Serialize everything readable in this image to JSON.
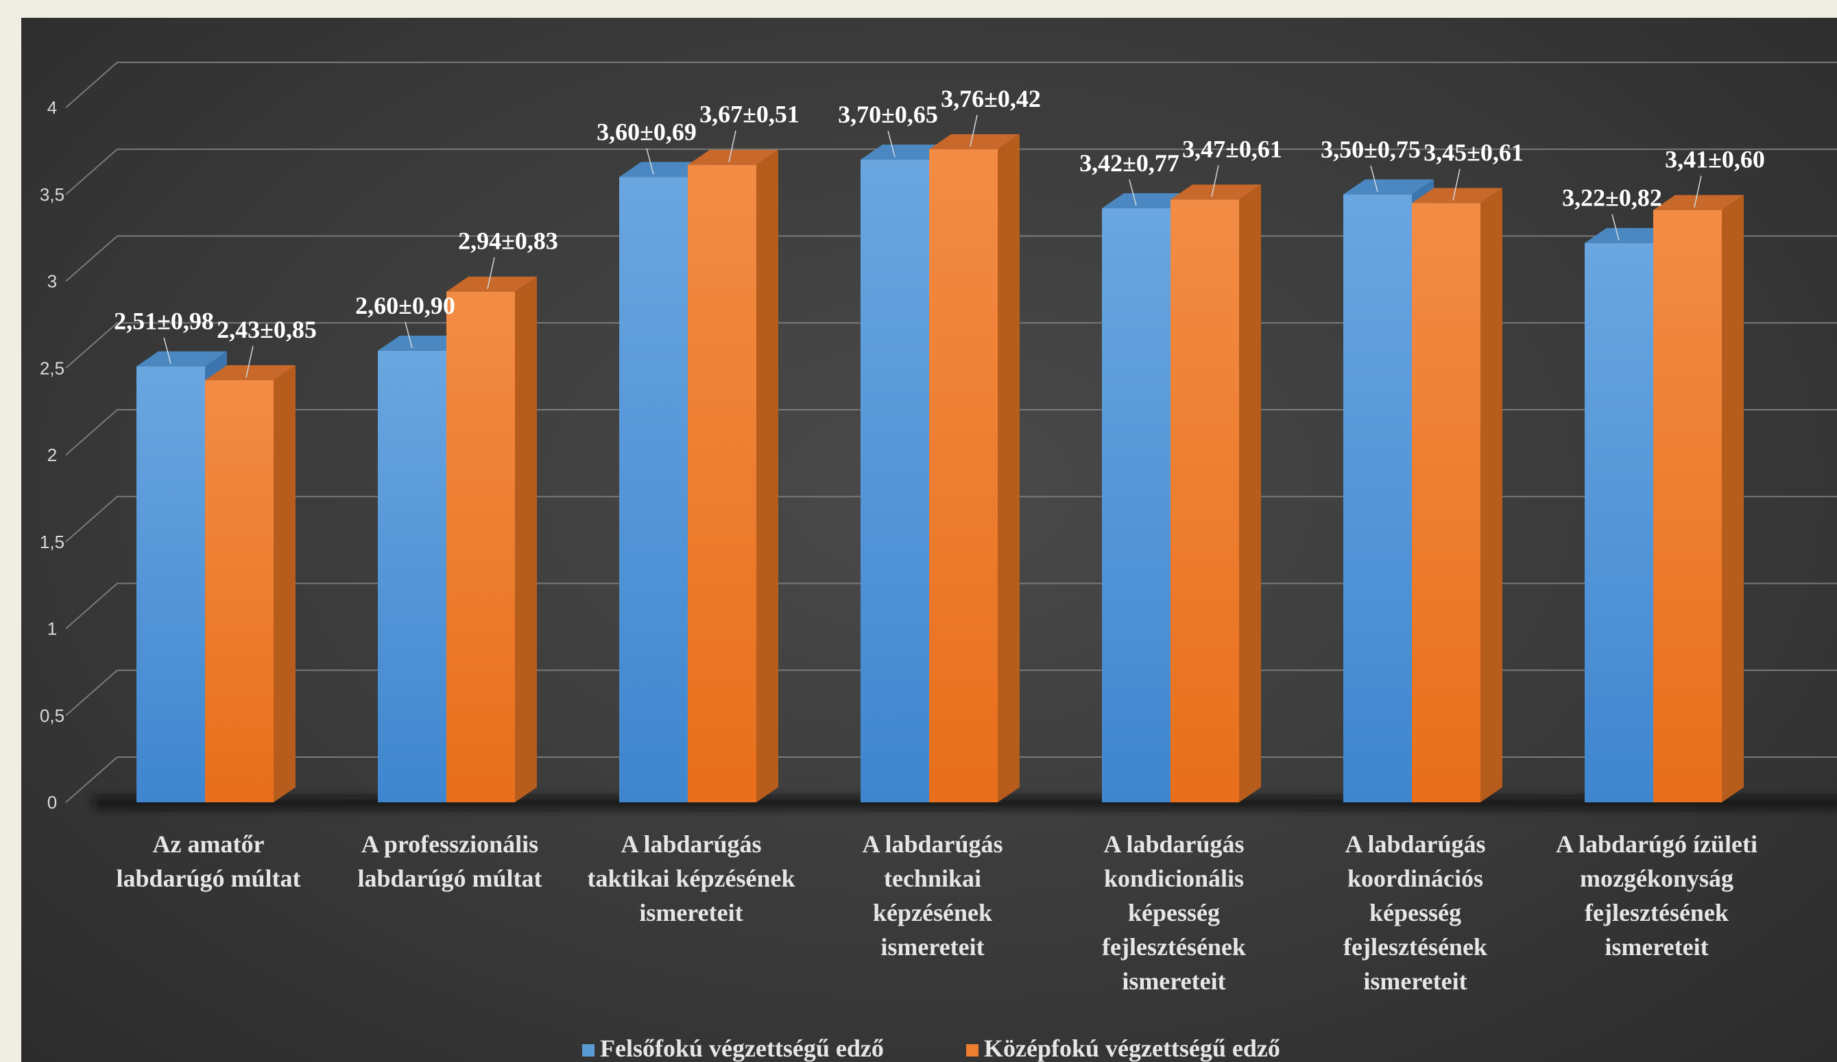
{
  "chart_data": {
    "type": "bar",
    "ylim": [
      0,
      4
    ],
    "yticks": [
      "0",
      "0,5",
      "1",
      "1,5",
      "2",
      "2,5",
      "3",
      "3,5",
      "4"
    ],
    "grid": true,
    "legend_position": "bottom",
    "categories": [
      [
        "Az amatőr",
        "labdarúgó múltat"
      ],
      [
        "A professzionális",
        "labdarúgó múltat"
      ],
      [
        "A labdarúgás",
        "taktikai képzésének",
        "ismereteit"
      ],
      [
        "A labdarúgás",
        "technikai",
        "képzésének",
        "ismereteit"
      ],
      [
        "A labdarúgás",
        "kondicionális",
        "képesség",
        "fejlesztésének",
        "ismereteit"
      ],
      [
        "A labdarúgás",
        "koordinációs",
        "képesség",
        "fejlesztésének",
        "ismereteit"
      ],
      [
        "A labdarúgó ízületi",
        "mozgékonyság",
        "fejlesztésének",
        "ismereteit"
      ]
    ],
    "series": [
      {
        "name": "Felsőfokú végzettségű edző",
        "color": "#5b9bd5",
        "values": [
          2.51,
          2.6,
          3.6,
          3.7,
          3.42,
          3.5,
          3.22
        ],
        "labels": [
          "2,51±0,98",
          "2,60±0,90",
          "3,60±0,69",
          "3,70±0,65",
          "3,42±0,77",
          "3,50±0,75",
          "3,22±0,82"
        ]
      },
      {
        "name": "Középfokú végzettségű edző",
        "color": "#ed7d31",
        "values": [
          2.43,
          2.94,
          3.67,
          3.76,
          3.47,
          3.45,
          3.41
        ],
        "labels": [
          "2,43±0,85",
          "2,94±0,83",
          "3,67±0,51",
          "3,76±0,42",
          "3,47±0,61",
          "3,45±0,61",
          "3,41±0,60"
        ]
      }
    ]
  }
}
